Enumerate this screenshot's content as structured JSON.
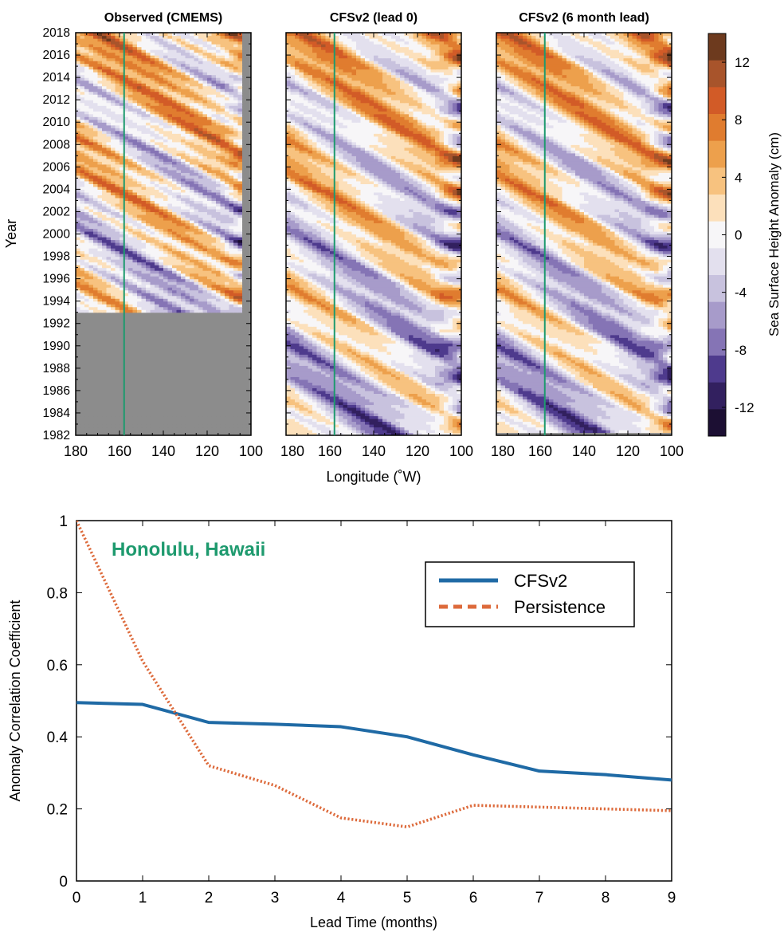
{
  "chart_data": [
    {
      "type": "heatmap",
      "panels": [
        {
          "title": "Observed (CMEMS)",
          "missing_before_year": 1993
        },
        {
          "title": "CFSv2 (lead 0)",
          "missing_before_year": null
        },
        {
          "title": "CFSv2 (6 month lead)",
          "missing_before_year": null
        }
      ],
      "xlabel": "Longitude (˚W)",
      "ylabel": "Year",
      "xlim": [
        180,
        100
      ],
      "ylim": [
        1982,
        2018
      ],
      "x_ticks": [
        "180",
        "160",
        "140",
        "120",
        "100"
      ],
      "y_ticks": [
        "1982",
        "1984",
        "1986",
        "1988",
        "1990",
        "1992",
        "1994",
        "1996",
        "1998",
        "2000",
        "2002",
        "2004",
        "2006",
        "2008",
        "2010",
        "2012",
        "2014",
        "2016",
        "2018"
      ],
      "marker_line_longitude_W": 157.9,
      "colorbar": {
        "label": "Sea Surface Height Anomaly (cm)",
        "range": [
          -14,
          14
        ],
        "ticks": [
          "12",
          "8",
          "4",
          "0",
          "-4",
          "-8",
          "-12"
        ],
        "colors": [
          "#1c0f33",
          "#32205f",
          "#4e3a8d",
          "#8574b5",
          "#a79bca",
          "#c8c2de",
          "#e3e0ee",
          "#f7f6f8",
          "#fce0bb",
          "#f7c27f",
          "#eda04c",
          "#e07c2f",
          "#d25b27",
          "#a8542b",
          "#6d3a1e"
        ]
      },
      "missing_color": "#8c8c8c"
    },
    {
      "type": "line",
      "title": "Honolulu, Hawaii",
      "xlabel": "Lead Time (months)",
      "ylabel": "Anomaly Correlation Coefficient",
      "xlim": [
        0,
        9
      ],
      "ylim": [
        0,
        1
      ],
      "x_ticks": [
        "0",
        "1",
        "2",
        "3",
        "4",
        "5",
        "6",
        "7",
        "8",
        "9"
      ],
      "y_ticks": [
        "0",
        "0.2",
        "0.4",
        "0.6",
        "0.8",
        "1"
      ],
      "legend": "top-right",
      "x": [
        0,
        1,
        2,
        3,
        4,
        5,
        6,
        7,
        8,
        9
      ],
      "series": [
        {
          "name": "CFSv2",
          "values": [
            0.495,
            0.49,
            0.44,
            0.435,
            0.428,
            0.4,
            0.35,
            0.305,
            0.295,
            0.28
          ],
          "color": "#1f6aa5",
          "style": "solid"
        },
        {
          "name": "Persistence",
          "values": [
            1.0,
            0.61,
            0.32,
            0.265,
            0.175,
            0.15,
            0.21,
            0.205,
            0.2,
            0.195
          ],
          "color": "#dd6a3b",
          "style": "dotted"
        }
      ],
      "title_color": "#1e9a6e"
    }
  ]
}
